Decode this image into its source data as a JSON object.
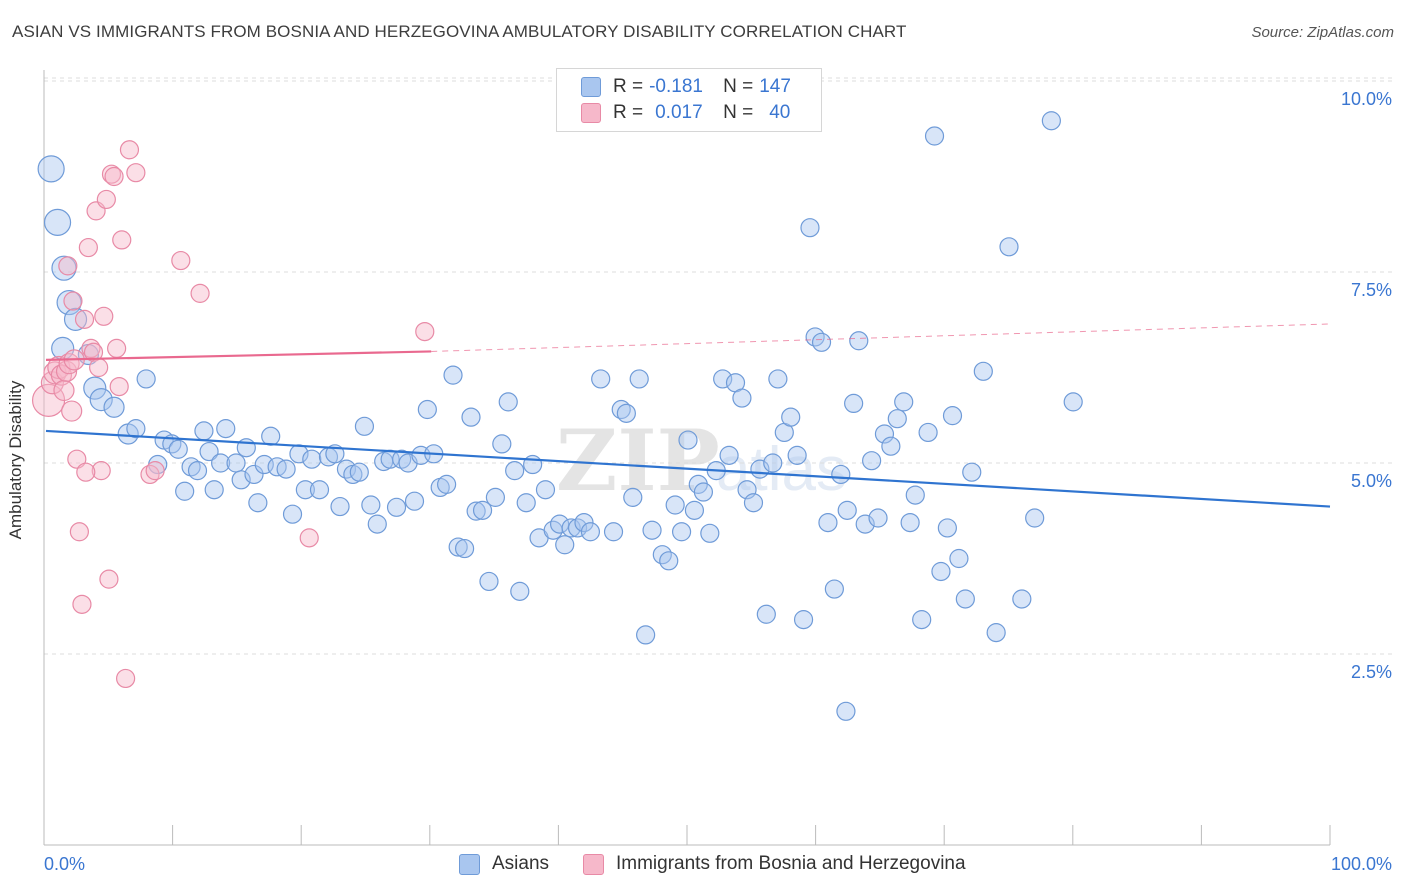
{
  "header": {
    "title": "ASIAN VS IMMIGRANTS FROM BOSNIA AND HERZEGOVINA AMBULATORY DISABILITY CORRELATION CHART",
    "source": "Source: ZipAtlas.com"
  },
  "legend_stats": {
    "r_label": "R =",
    "n_label": "N =",
    "rows": [
      {
        "r": "-0.181",
        "n": "147",
        "color": "#a9c6ef"
      },
      {
        "r": "0.017",
        "n": "40",
        "color": "#f6b8ca"
      }
    ]
  },
  "colors": {
    "asians_fill": "#a9c6ef",
    "asians_stroke": "#6f9bd8",
    "asians_line": "#2f74d0",
    "bosnia_fill": "#f6b8ca",
    "bosnia_stroke": "#e88aa6",
    "bosnia_line": "#e9698f",
    "axis_text": "#3a76d1",
    "grid": "#dddddd"
  },
  "chart_data": {
    "type": "scatter",
    "title": "ASIAN VS IMMIGRANTS FROM BOSNIA AND HERZEGOVINA AMBULATORY DISABILITY CORRELATION CHART",
    "xlabel": "",
    "ylabel": "Ambulatory Disability",
    "xlim": [
      0,
      100
    ],
    "ylim": [
      0,
      10.5
    ],
    "x_tick_labels": [
      "0.0%",
      "100.0%"
    ],
    "y_ticks": [
      {
        "value": 2.5,
        "label": "2.5%"
      },
      {
        "value": 5.0,
        "label": "5.0%"
      },
      {
        "value": 7.5,
        "label": "7.5%"
      },
      {
        "value": 10.0,
        "label": "10.0%"
      }
    ],
    "grid": "horizontal dashed",
    "legend": "bottom-center",
    "watermark": "ZIPatlas",
    "series": [
      {
        "name": "Asians",
        "trend": {
          "x": [
            0,
            100
          ],
          "y": [
            5.42,
            4.43
          ]
        },
        "points": [
          [
            0.4,
            8.85,
            13
          ],
          [
            0.9,
            8.15,
            13
          ],
          [
            1.4,
            7.55,
            12
          ],
          [
            1.8,
            7.1,
            12
          ],
          [
            2.3,
            6.88,
            11
          ],
          [
            1.3,
            6.5,
            11
          ],
          [
            3.3,
            6.42,
            10
          ],
          [
            3.8,
            5.98,
            11
          ],
          [
            4.3,
            5.83,
            11
          ],
          [
            5.3,
            5.73,
            10
          ],
          [
            6.4,
            5.38,
            10
          ],
          [
            7.0,
            5.45,
            9
          ],
          [
            7.8,
            6.1,
            9
          ],
          [
            8.7,
            4.98,
            9
          ],
          [
            9.2,
            5.3,
            9
          ],
          [
            9.8,
            5.25,
            9
          ],
          [
            10.3,
            5.18,
            9
          ],
          [
            10.8,
            4.63,
            9
          ],
          [
            11.3,
            4.95,
            9
          ],
          [
            11.8,
            4.9,
            9
          ],
          [
            12.3,
            5.42,
            9
          ],
          [
            12.7,
            5.15,
            9
          ],
          [
            13.1,
            4.65,
            9
          ],
          [
            13.6,
            5.0,
            9
          ],
          [
            14.0,
            5.45,
            9
          ],
          [
            14.8,
            5.0,
            9
          ],
          [
            15.2,
            4.78,
            9
          ],
          [
            15.6,
            5.2,
            9
          ],
          [
            16.2,
            4.85,
            9
          ],
          [
            16.5,
            4.48,
            9
          ],
          [
            17.0,
            4.98,
            9
          ],
          [
            17.5,
            5.35,
            9
          ],
          [
            18.0,
            4.95,
            9
          ],
          [
            18.7,
            4.92,
            9
          ],
          [
            19.2,
            4.33,
            9
          ],
          [
            19.7,
            5.12,
            9
          ],
          [
            20.2,
            4.65,
            9
          ],
          [
            20.7,
            5.05,
            9
          ],
          [
            21.3,
            4.65,
            9
          ],
          [
            22.0,
            5.08,
            9
          ],
          [
            22.5,
            5.12,
            9
          ],
          [
            22.9,
            4.43,
            9
          ],
          [
            23.4,
            4.92,
            9
          ],
          [
            23.9,
            4.85,
            9
          ],
          [
            24.4,
            4.88,
            9
          ],
          [
            24.8,
            5.48,
            9
          ],
          [
            25.3,
            4.45,
            9
          ],
          [
            25.8,
            4.2,
            9
          ],
          [
            26.3,
            5.02,
            9
          ],
          [
            26.8,
            5.05,
            9
          ],
          [
            27.3,
            4.42,
            9
          ],
          [
            27.7,
            5.05,
            9
          ],
          [
            28.2,
            5.0,
            9
          ],
          [
            28.7,
            4.5,
            9
          ],
          [
            29.2,
            5.1,
            9
          ],
          [
            29.7,
            5.7,
            9
          ],
          [
            30.2,
            5.12,
            9
          ],
          [
            30.7,
            4.68,
            9
          ],
          [
            31.2,
            4.72,
            9
          ],
          [
            31.7,
            6.15,
            9
          ],
          [
            32.1,
            3.9,
            9
          ],
          [
            32.6,
            3.88,
            9
          ],
          [
            33.1,
            5.6,
            9
          ],
          [
            33.5,
            4.37,
            9
          ],
          [
            34.0,
            4.38,
            9
          ],
          [
            34.5,
            3.45,
            9
          ],
          [
            35.0,
            4.55,
            9
          ],
          [
            35.5,
            5.25,
            9
          ],
          [
            36.0,
            5.8,
            9
          ],
          [
            36.5,
            4.9,
            9
          ],
          [
            36.9,
            3.32,
            9
          ],
          [
            37.4,
            4.48,
            9
          ],
          [
            37.9,
            4.98,
            9
          ],
          [
            38.4,
            4.02,
            9
          ],
          [
            38.9,
            4.65,
            9
          ],
          [
            39.5,
            4.12,
            9
          ],
          [
            40.0,
            4.2,
            9
          ],
          [
            40.4,
            3.93,
            9
          ],
          [
            40.9,
            4.15,
            9
          ],
          [
            41.4,
            4.15,
            9
          ],
          [
            41.9,
            4.22,
            9
          ],
          [
            42.4,
            4.1,
            9
          ],
          [
            43.2,
            6.1,
            9
          ],
          [
            44.2,
            4.1,
            9
          ],
          [
            44.8,
            5.7,
            9
          ],
          [
            45.2,
            5.65,
            9
          ],
          [
            45.7,
            4.55,
            9
          ],
          [
            46.2,
            6.1,
            9
          ],
          [
            46.7,
            2.75,
            9
          ],
          [
            47.2,
            4.12,
            9
          ],
          [
            48.0,
            3.8,
            9
          ],
          [
            48.5,
            3.72,
            9
          ],
          [
            49.0,
            4.45,
            9
          ],
          [
            49.5,
            4.1,
            9
          ],
          [
            50.0,
            5.3,
            9
          ],
          [
            50.5,
            4.38,
            9
          ],
          [
            50.8,
            4.72,
            9
          ],
          [
            51.2,
            4.62,
            9
          ],
          [
            51.7,
            4.08,
            9
          ],
          [
            52.2,
            4.9,
            9
          ],
          [
            52.7,
            6.1,
            9
          ],
          [
            53.2,
            5.1,
            9
          ],
          [
            53.7,
            6.05,
            9
          ],
          [
            54.2,
            5.85,
            9
          ],
          [
            54.6,
            4.65,
            9
          ],
          [
            55.1,
            4.48,
            9
          ],
          [
            55.6,
            4.92,
            9
          ],
          [
            56.1,
            3.02,
            9
          ],
          [
            56.6,
            5.0,
            9
          ],
          [
            57.0,
            6.1,
            9
          ],
          [
            57.5,
            5.4,
            9
          ],
          [
            58.0,
            5.6,
            9
          ],
          [
            58.5,
            5.1,
            9
          ],
          [
            59.0,
            2.95,
            9
          ],
          [
            59.5,
            8.08,
            9
          ],
          [
            59.9,
            6.65,
            9
          ],
          [
            60.4,
            6.58,
            9
          ],
          [
            60.9,
            4.22,
            9
          ],
          [
            61.4,
            3.35,
            9
          ],
          [
            61.9,
            4.85,
            9
          ],
          [
            62.4,
            4.38,
            9
          ],
          [
            62.9,
            5.78,
            9
          ],
          [
            63.3,
            6.6,
            9
          ],
          [
            63.8,
            4.2,
            9
          ],
          [
            64.3,
            5.03,
            9
          ],
          [
            64.8,
            4.28,
            9
          ],
          [
            65.3,
            5.38,
            9
          ],
          [
            65.8,
            5.22,
            9
          ],
          [
            66.3,
            5.58,
            9
          ],
          [
            66.8,
            5.8,
            9
          ],
          [
            67.3,
            4.22,
            9
          ],
          [
            67.7,
            4.58,
            9
          ],
          [
            68.2,
            2.95,
            9
          ],
          [
            68.7,
            5.4,
            9
          ],
          [
            69.2,
            9.28,
            9
          ],
          [
            69.7,
            3.58,
            9
          ],
          [
            70.2,
            4.15,
            9
          ],
          [
            70.6,
            5.62,
            9
          ],
          [
            71.1,
            3.75,
            9
          ],
          [
            71.6,
            3.22,
            9
          ],
          [
            72.1,
            4.88,
            9
          ],
          [
            73.0,
            6.2,
            9
          ],
          [
            74.0,
            2.78,
            9
          ],
          [
            75.0,
            7.83,
            9
          ],
          [
            76.0,
            3.22,
            9
          ],
          [
            77.0,
            4.28,
            9
          ],
          [
            78.3,
            9.48,
            9
          ],
          [
            80.0,
            5.8,
            9
          ],
          [
            62.3,
            1.75,
            9
          ]
        ]
      },
      {
        "name": "Immigrants from Bosnia and Herzegovina",
        "trend": {
          "x": [
            0,
            30
          ],
          "y": [
            6.35,
            6.46
          ]
        },
        "trend_extension": {
          "x": [
            30,
            100
          ],
          "y": [
            6.46,
            6.82
          ]
        },
        "points": [
          [
            0.2,
            5.82,
            16
          ],
          [
            0.5,
            6.05,
            11
          ],
          [
            0.7,
            6.18,
            11
          ],
          [
            1.0,
            6.25,
            11
          ],
          [
            1.2,
            6.15,
            10
          ],
          [
            1.4,
            5.95,
            10
          ],
          [
            1.6,
            6.2,
            10
          ],
          [
            1.8,
            6.3,
            10
          ],
          [
            2.0,
            5.68,
            10
          ],
          [
            2.2,
            6.35,
            10
          ],
          [
            2.4,
            5.05,
            9
          ],
          [
            2.6,
            4.1,
            9
          ],
          [
            2.8,
            3.15,
            9
          ],
          [
            3.0,
            6.88,
            9
          ],
          [
            3.3,
            7.82,
            9
          ],
          [
            3.5,
            6.5,
            9
          ],
          [
            3.7,
            6.45,
            9
          ],
          [
            3.9,
            8.3,
            9
          ],
          [
            4.1,
            6.25,
            9
          ],
          [
            4.3,
            4.9,
            9
          ],
          [
            4.5,
            6.92,
            9
          ],
          [
            4.7,
            8.45,
            9
          ],
          [
            4.9,
            3.48,
            9
          ],
          [
            5.1,
            8.78,
            9
          ],
          [
            5.3,
            8.75,
            9
          ],
          [
            5.5,
            6.5,
            9
          ],
          [
            5.7,
            6.0,
            9
          ],
          [
            5.9,
            7.92,
            9
          ],
          [
            6.2,
            2.18,
            9
          ],
          [
            6.5,
            9.1,
            9
          ],
          [
            7.0,
            8.8,
            9
          ],
          [
            8.1,
            4.85,
            9
          ],
          [
            8.5,
            4.9,
            9
          ],
          [
            10.5,
            7.65,
            9
          ],
          [
            12.0,
            7.22,
            9
          ],
          [
            20.5,
            4.02,
            9
          ],
          [
            29.5,
            6.72,
            9
          ],
          [
            1.7,
            7.58,
            9
          ],
          [
            2.1,
            7.12,
            9
          ],
          [
            3.1,
            4.88,
            9
          ]
        ]
      }
    ]
  },
  "bottom_legend": {
    "items": [
      {
        "label": "Asians",
        "color": "#a9c6ef"
      },
      {
        "label": "Immigrants from Bosnia and Herzegovina",
        "color": "#f6b8ca"
      }
    ]
  }
}
